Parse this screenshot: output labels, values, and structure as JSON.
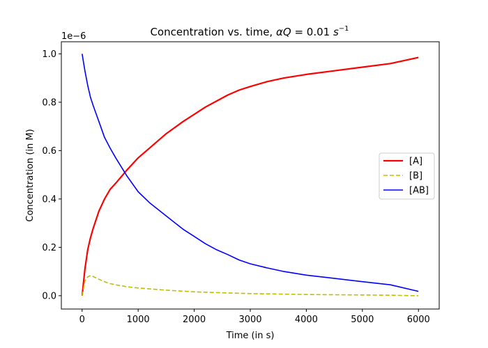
{
  "chart_data": {
    "type": "line",
    "title": "Concentration vs. time, αQ = 0.01 s⁻¹",
    "title_parts": {
      "prefix": "Concentration vs. time, ",
      "alpha": "α",
      "q": "Q",
      "mid": " = 0.01 ",
      "unit": "s",
      "exp": "−1"
    },
    "xlabel": "Time (in s)",
    "ylabel": "Concentration (in M)",
    "offset_text": "1e−6",
    "xlim": [
      -370,
      6370
    ],
    "ylim": [
      -0.055,
      1.05
    ],
    "xticks": [
      0,
      1000,
      2000,
      3000,
      4000,
      5000,
      6000
    ],
    "yticks": [
      0.0,
      0.2,
      0.4,
      0.6,
      0.8,
      1.0
    ],
    "ytick_labels": [
      "0.0",
      "0.2",
      "0.4",
      "0.6",
      "0.8",
      "1.0"
    ],
    "grid": false,
    "legend_position": "center-right",
    "series": [
      {
        "name": "[A]",
        "color": "#ff0000",
        "style": "solid",
        "x": [
          0,
          50,
          100,
          150,
          200,
          300,
          400,
          500,
          600,
          800,
          1000,
          1200,
          1500,
          1800,
          2000,
          2200,
          2400,
          2600,
          2800,
          3000,
          3300,
          3600,
          4000,
          4500,
          5000,
          5500,
          6000
        ],
        "values": [
          0.0,
          0.11,
          0.19,
          0.24,
          0.28,
          0.35,
          0.4,
          0.44,
          0.465,
          0.52,
          0.57,
          0.61,
          0.67,
          0.72,
          0.75,
          0.78,
          0.805,
          0.83,
          0.85,
          0.865,
          0.885,
          0.9,
          0.915,
          0.93,
          0.945,
          0.96,
          0.985
        ]
      },
      {
        "name": "[B]",
        "color": "#bfbf00",
        "style": "dashed",
        "x": [
          0,
          50,
          100,
          150,
          200,
          300,
          400,
          500,
          600,
          800,
          1000,
          1500,
          2000,
          2500,
          3000,
          3500,
          4000,
          4500,
          5000,
          5500,
          6000
        ],
        "values": [
          0.0,
          0.06,
          0.078,
          0.083,
          0.079,
          0.068,
          0.058,
          0.05,
          0.045,
          0.037,
          0.032,
          0.023,
          0.016,
          0.012,
          0.009,
          0.007,
          0.005,
          0.004,
          0.003,
          0.002,
          0.0
        ]
      },
      {
        "name": "[AB]",
        "color": "#0000ff",
        "style": "solid",
        "x": [
          0,
          50,
          100,
          150,
          200,
          300,
          400,
          500,
          600,
          800,
          1000,
          1200,
          1500,
          1800,
          2000,
          2200,
          2400,
          2600,
          2800,
          3000,
          3300,
          3600,
          4000,
          4500,
          5000,
          5500,
          6000
        ],
        "values": [
          1.0,
          0.93,
          0.87,
          0.82,
          0.785,
          0.72,
          0.655,
          0.61,
          0.57,
          0.495,
          0.43,
          0.385,
          0.33,
          0.275,
          0.245,
          0.215,
          0.19,
          0.17,
          0.148,
          0.132,
          0.115,
          0.1,
          0.085,
          0.072,
          0.058,
          0.045,
          0.018
        ]
      }
    ]
  }
}
